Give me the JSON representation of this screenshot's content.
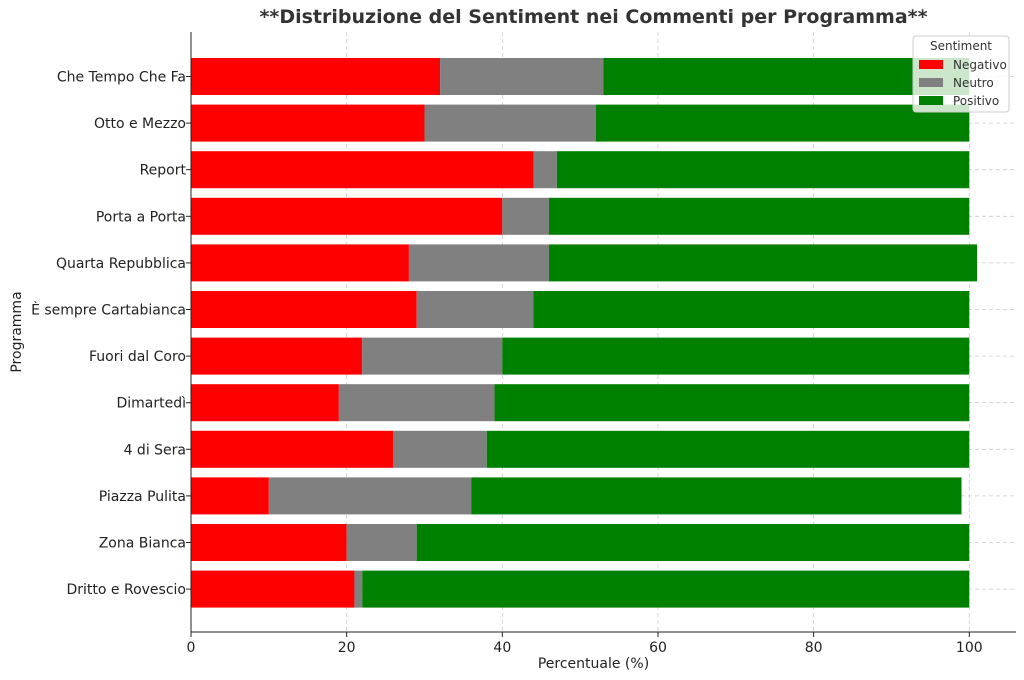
{
  "chart_data": {
    "type": "bar",
    "orientation": "horizontal",
    "stacked": true,
    "title": "**Distribuzione del Sentiment nei Commenti per Programma**",
    "xlabel": "Percentuale (%)",
    "ylabel": "Programma",
    "xlim": [
      0,
      106
    ],
    "xticks": [
      0,
      20,
      40,
      60,
      80,
      100
    ],
    "grid": true,
    "legend": {
      "title": "Sentiment",
      "placement": "top-right"
    },
    "categories": [
      "Che Tempo Che Fa",
      "Otto e Mezzo",
      "Report",
      "Porta a Porta",
      "Quarta Repubblica",
      "È sempre Cartabianca",
      "Fuori dal Coro",
      "Dimartedì",
      "4 di Sera",
      "Piazza Pulita",
      "Zona Bianca",
      "Dritto e Rovescio"
    ],
    "series": [
      {
        "name": "Negativo",
        "color": "#ff0000",
        "values": [
          32,
          30,
          44,
          40,
          28,
          29,
          22,
          19,
          26,
          10,
          20,
          21
        ]
      },
      {
        "name": "Neutro",
        "color": "#808080",
        "values": [
          21,
          22,
          3,
          6,
          18,
          15,
          18,
          20,
          12,
          26,
          9,
          1
        ]
      },
      {
        "name": "Positivo",
        "color": "#008000",
        "values": [
          47,
          48,
          53,
          54,
          55,
          56,
          60,
          61,
          62,
          63,
          71,
          78
        ]
      }
    ]
  }
}
